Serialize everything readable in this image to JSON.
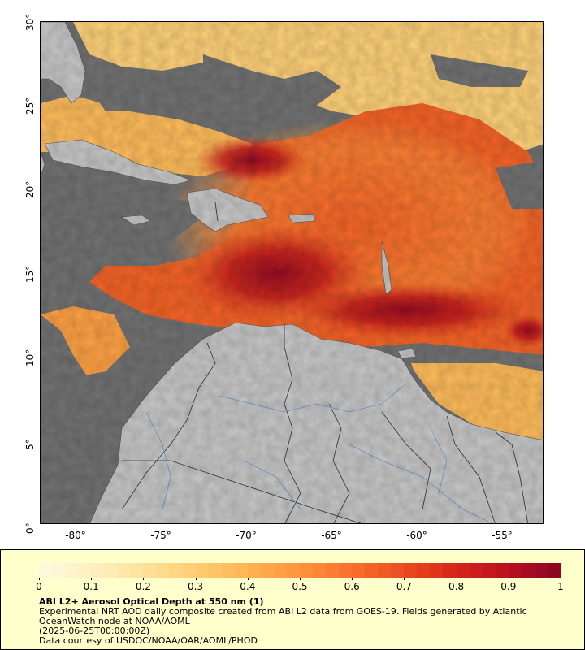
{
  "map": {
    "lat_labels": [
      "30°",
      "25°",
      "20°",
      "15°",
      "10°",
      "5°",
      "0°"
    ],
    "lon_labels": [
      "-80°",
      "-75°",
      "-70°",
      "-65°",
      "-60°",
      "-55°"
    ],
    "colors": {
      "ocean_nodata": "#737373",
      "land": "#c8c8c8",
      "border": "#333333",
      "river": "#6b9bd1"
    }
  },
  "legend": {
    "ticks": [
      "0",
      "0.1",
      "0.2",
      "0.3",
      "0.4",
      "0.5",
      "0.6",
      "0.7",
      "0.8",
      "0.9",
      "1"
    ],
    "title": "ABI L2+ Aerosol Optical Depth at 550 nm (1)",
    "line1": "Experimental NRT AOD daily composite created from ABI L2 data from GOES-19. Fields generated by Atlantic",
    "line2": "OceanWatch node at NOAA/AOML",
    "line3": "(2025-06-25T00:00:00Z)",
    "line4": "Data courtesy of USDOC/NOAA/OAR/AOML/PHOD",
    "colorscale": [
      "#fff9dc",
      "#fff0c0",
      "#ffe3a0",
      "#ffd27a",
      "#ffbd5c",
      "#ffa245",
      "#fc8535",
      "#f56428",
      "#e8431e",
      "#d4201a",
      "#b8101f",
      "#8f0623"
    ]
  }
}
